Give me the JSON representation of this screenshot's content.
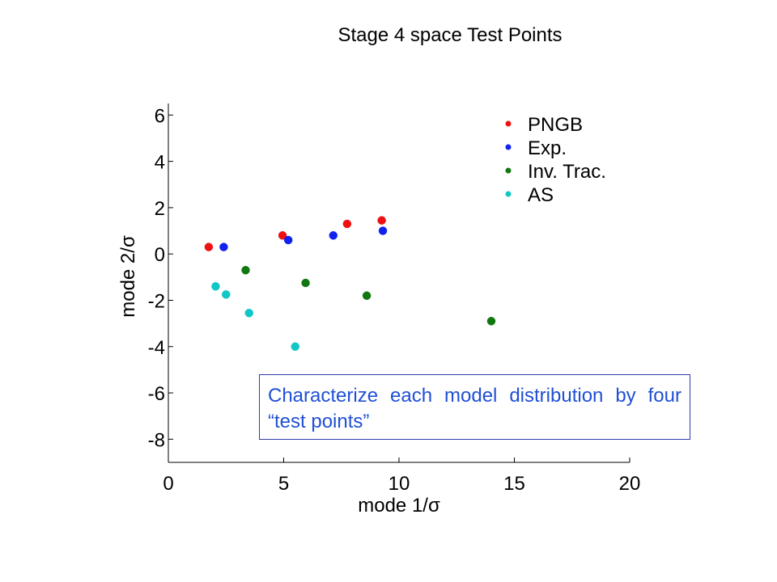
{
  "slide_title": "Stage 4 space Test Points",
  "callout_text": "Characterize each model distribution by four “test points”",
  "colors": {
    "PNGB": "#ee1111",
    "Exp.": "#1122ee",
    "Inv. Trac.": "#117711",
    "AS": "#11c6c6",
    "callout_text": "#1f4fd6",
    "callout_border": "#2f3da8"
  },
  "chart_data": {
    "type": "scatter",
    "title": "",
    "xlabel": "mode 1/σ",
    "ylabel": "mode 2/σ",
    "xlim": [
      0,
      20
    ],
    "ylim": [
      -9,
      6.5
    ],
    "xticks": [
      0,
      5,
      10,
      15,
      20
    ],
    "yticks": [
      6,
      4,
      2,
      0,
      -2,
      -4,
      -6,
      -8
    ],
    "grid": false,
    "legend_position": "top-right",
    "series": [
      {
        "name": "PNGB",
        "points": [
          [
            1.75,
            0.3
          ],
          [
            4.95,
            0.8
          ],
          [
            7.75,
            1.3
          ],
          [
            9.25,
            1.45
          ]
        ]
      },
      {
        "name": "Exp.",
        "points": [
          [
            2.4,
            0.3
          ],
          [
            5.2,
            0.6
          ],
          [
            7.15,
            0.8
          ],
          [
            9.3,
            1.0
          ]
        ]
      },
      {
        "name": "Inv. Trac.",
        "points": [
          [
            3.35,
            -0.7
          ],
          [
            5.95,
            -1.25
          ],
          [
            8.6,
            -1.8
          ],
          [
            14.0,
            -2.9
          ]
        ]
      },
      {
        "name": "AS",
        "points": [
          [
            2.05,
            -1.4
          ],
          [
            2.5,
            -1.75
          ],
          [
            3.5,
            -2.55
          ],
          [
            5.5,
            -4.0
          ]
        ]
      }
    ]
  }
}
